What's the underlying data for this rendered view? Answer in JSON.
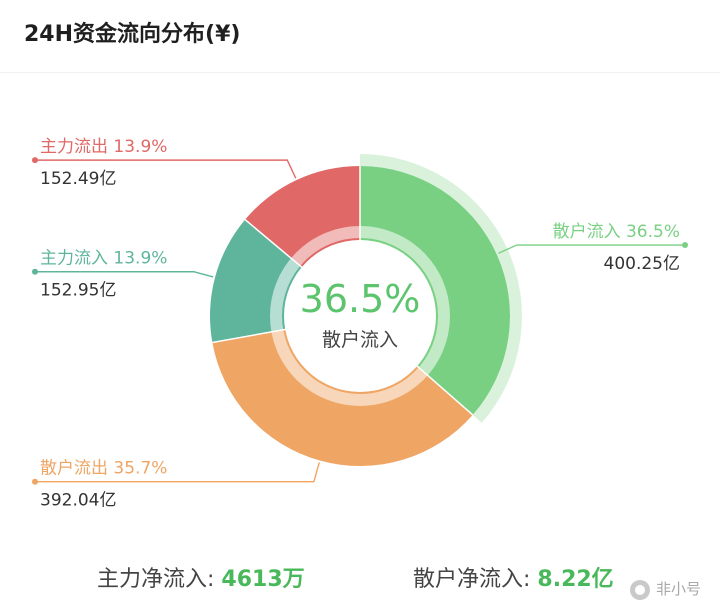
{
  "title": "24H资金流向分布(¥)",
  "chart_data": {
    "type": "pie",
    "title": "24H资金流向分布(¥)",
    "slices": [
      {
        "label": "散户流入",
        "percent_label": "36.5%",
        "value_label": "400.25亿",
        "percent": 36.5,
        "value": 400.25,
        "color": "#79d083"
      },
      {
        "label": "散户流出",
        "percent_label": "35.7%",
        "value_label": "392.04亿",
        "percent": 35.7,
        "value": 392.04,
        "color": "#efa564"
      },
      {
        "label": "主力流入",
        "percent_label": "13.9%",
        "value_label": "152.95亿",
        "percent": 13.9,
        "value": 152.95,
        "color": "#5fb59c"
      },
      {
        "label": "主力流出",
        "percent_label": "13.9%",
        "value_label": "152.49亿",
        "percent": 13.9,
        "value": 152.49,
        "color": "#e06867"
      }
    ],
    "center_value": "36.5%",
    "center_label": "散户流入",
    "highlight_slice": "散户流入"
  },
  "summary": {
    "main_label": "主力净流入: ",
    "main_value": "4613万",
    "retail_label": "散户净流入: ",
    "retail_value": "8.22亿"
  },
  "watermark": {
    "text": "非小号"
  },
  "colors": {
    "retail_in": "#79d083",
    "retail_out": "#efa564",
    "main_in": "#5fb59c",
    "main_out": "#e06867",
    "positive": "#49b85a"
  }
}
